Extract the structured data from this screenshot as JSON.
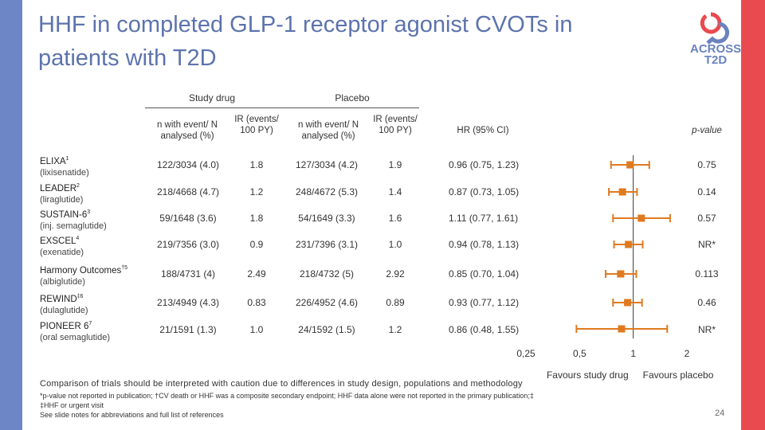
{
  "slide": {
    "title": "HHF in completed GLP-1 receptor agonist CVOTs in patients with T2D",
    "logo_text_line1": "ACROSS",
    "logo_text_line2": "T2D",
    "page_number": "24"
  },
  "headers": {
    "study_drug": "Study drug",
    "placebo": "Placebo",
    "n_events": "n with event/ N analysed (%)",
    "ir": "IR (events/ 100 PY)",
    "hr": "HR (95% CI)",
    "pvalue": "p-value"
  },
  "colors": {
    "marker": "#e07a1f",
    "left_bar": "#6d86c6",
    "right_bar": "#e94a4f",
    "title": "#5c73ad"
  },
  "footnotes": {
    "line1": "Comparison of trials should be interpreted with caution due to differences in study design, populations and methodology",
    "line2": "*p-value not reported in publication; †CV death or HHF was a composite secondary endpoint; HHF data alone were not reported in the primary publication;‡ ‡HHF or urgent visit",
    "line3": "See slide notes for abbreviations and full list of references"
  },
  "chart_data": {
    "type": "forest",
    "xscale": "log",
    "xlim": [
      0.25,
      2
    ],
    "ticks": [
      0.25,
      0.5,
      1,
      2
    ],
    "tick_labels": [
      "0,25",
      "0,5",
      "1",
      "2"
    ],
    "reference_line": 1,
    "favours_left": "Favours study drug",
    "favours_right": "Favours placebo",
    "rows": [
      {
        "trial": "ELIXA",
        "sup": "1",
        "drug": "(lixisenatide)",
        "drug_n": "122/3034 (4.0)",
        "drug_ir": "1.8",
        "placebo_n": "127/3034 (4.2)",
        "placebo_ir": "1.9",
        "hr_text": "0.96 (0.75, 1.23)",
        "hr": 0.96,
        "lo": 0.75,
        "hi": 1.23,
        "p": "0.75"
      },
      {
        "trial": "LEADER",
        "sup": "2",
        "drug": "(liraglutide)",
        "drug_n": "218/4668 (4.7)",
        "drug_ir": "1.2",
        "placebo_n": "248/4672 (5.3)",
        "placebo_ir": "1.4",
        "hr_text": "0.87 (0.73, 1.05)",
        "hr": 0.87,
        "lo": 0.73,
        "hi": 1.05,
        "p": "0.14"
      },
      {
        "trial": "SUSTAIN-6",
        "sup": "3",
        "drug": "(inj. semaglutide)",
        "drug_n": "59/1648 (3.6)",
        "drug_ir": "1.8",
        "placebo_n": "54/1649 (3.3)",
        "placebo_ir": "1.6",
        "hr_text": "1.11 (0.77, 1.61)",
        "hr": 1.11,
        "lo": 0.77,
        "hi": 1.61,
        "p": "0.57"
      },
      {
        "trial": "EXSCEL",
        "sup": "4",
        "drug": "(exenatide)",
        "drug_n": "219/7356 (3.0)",
        "drug_ir": "0.9",
        "placebo_n": "231/7396 (3.1)",
        "placebo_ir": "1.0",
        "hr_text": "0.94 (0.78, 1.13)",
        "hr": 0.94,
        "lo": 0.78,
        "hi": 1.13,
        "p": "NR*"
      },
      {
        "trial": "Harmony Outcomes",
        "sup": "†5",
        "drug": "(albiglutide)",
        "drug_n": "188/4731 (4)",
        "drug_ir": "2.49",
        "placebo_n": "218/4732 (5)",
        "placebo_ir": "2.92",
        "hr_text": "0.85 (0.70, 1.04)",
        "hr": 0.85,
        "lo": 0.7,
        "hi": 1.04,
        "p": "0.113"
      },
      {
        "trial": "REWIND",
        "sup": "‡6",
        "drug": "(dulaglutide)",
        "drug_n": "213/4949 (4.3)",
        "drug_ir": "0.83",
        "placebo_n": "226/4952 (4.6)",
        "placebo_ir": "0.89",
        "hr_text": "0.93 (0.77, 1.12)",
        "hr": 0.93,
        "lo": 0.77,
        "hi": 1.12,
        "p": "0.46"
      },
      {
        "trial": "PIONEER 6",
        "sup": "7",
        "drug": "(oral semaglutide)",
        "drug_n": "21/1591 (1.3)",
        "drug_ir": "1.0",
        "placebo_n": "24/1592 (1.5)",
        "placebo_ir": "1.2",
        "hr_text": "0.86 (0.48, 1.55)",
        "hr": 0.86,
        "lo": 0.48,
        "hi": 1.55,
        "p": "NR*"
      }
    ]
  }
}
